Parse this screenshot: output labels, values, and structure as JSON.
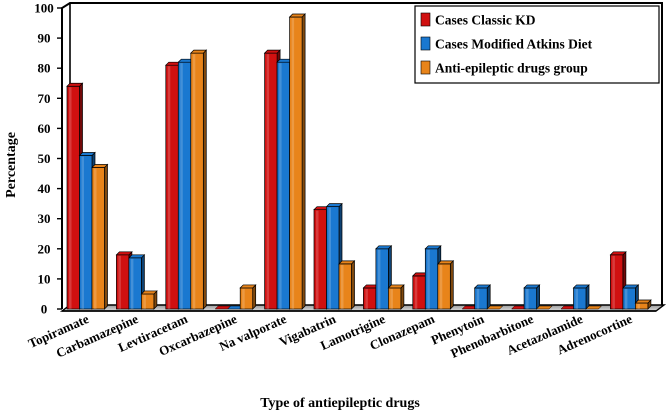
{
  "chart_data": {
    "type": "bar",
    "title": "",
    "xlabel": "Type of antiepileptic drugs",
    "ylabel": "Percentage",
    "ylim": [
      0,
      100
    ],
    "yticks": [
      0,
      10,
      20,
      30,
      40,
      50,
      60,
      70,
      80,
      90,
      100
    ],
    "categories": [
      "Topiramate",
      "Carbamazepine",
      "Levtiracetam",
      "Oxcarbazepine",
      "Na valporate",
      "Vigabatrin",
      "Lamotrigine",
      "Clonazepam",
      "Phenytoin",
      "Phenobarbitone",
      "Acetazolamide",
      "Adrenocortine"
    ],
    "series": [
      {
        "name": "Cases Classic KD",
        "color": "#d01010",
        "values": [
          74,
          18,
          81,
          0,
          85,
          33,
          7,
          11,
          0,
          0,
          0,
          18
        ]
      },
      {
        "name": "Cases Modified Atkins Diet",
        "color": "#1a78d0",
        "values": [
          51,
          17,
          82,
          0,
          82,
          34,
          20,
          20,
          7,
          7,
          7,
          7
        ]
      },
      {
        "name": "Anti-epileptic drugs group",
        "color": "#e8841a",
        "values": [
          47,
          5,
          85,
          7,
          97,
          15,
          7,
          15,
          0,
          0,
          0,
          2
        ]
      }
    ],
    "legend_position": "top-right",
    "grid": false
  }
}
